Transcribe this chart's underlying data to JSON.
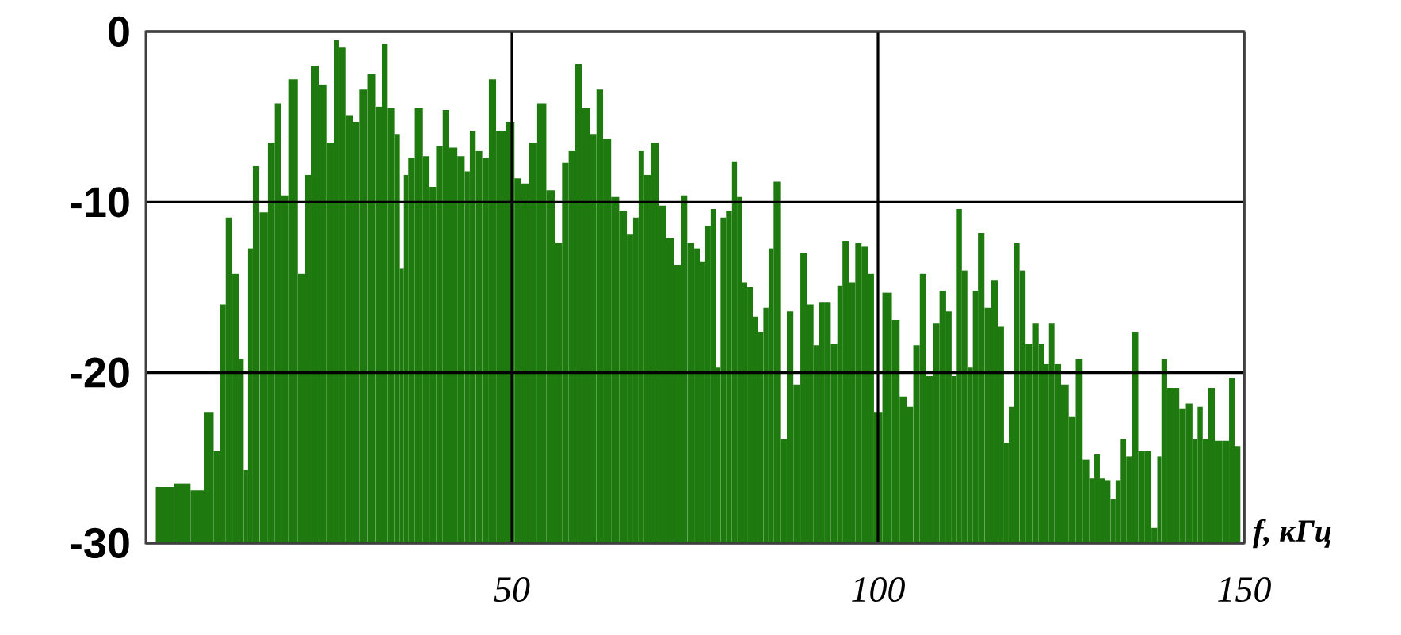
{
  "chart_data": {
    "type": "bar",
    "xlabel": "f, кГц",
    "color": "#1e7a0e",
    "xlim": [
      0,
      150
    ],
    "ylim": [
      -30,
      0
    ],
    "xticks": [
      50,
      100,
      150
    ],
    "yticks": [
      0,
      -10,
      -20,
      -30
    ],
    "grid": true,
    "x": [
      2.6,
      5.1,
      7.1,
      8.7,
      9.8,
      10.5,
      11.3,
      12.3,
      13.1,
      13.6,
      14.3,
      14.9,
      16.1,
      17.2,
      18.0,
      19.0,
      20.1,
      21.4,
      22.1,
      23.0,
      24.2,
      25.3,
      26.0,
      26.8,
      27.9,
      28.6,
      29.7,
      30.8,
      31.9,
      32.6,
      33.5,
      34.4,
      35.0,
      35.5,
      36.2,
      37.3,
      38.4,
      39.1,
      40.2,
      40.9,
      42.0,
      43.1,
      44.0,
      44.5,
      45.6,
      46.3,
      47.4,
      48.3,
      50.0,
      50.7,
      51.8,
      52.9,
      54.0,
      55.4,
      56.5,
      57.2,
      58.3,
      59.0,
      60.1,
      61.2,
      61.9,
      63.0,
      64.1,
      65.2,
      66.2,
      66.9,
      67.7,
      68.4,
      69.5,
      70.6,
      71.6,
      72.7,
      73.4,
      74.5,
      75.3,
      76.0,
      76.8,
      77.5,
      78.2,
      78.8,
      79.7,
      80.4,
      81.1,
      81.8,
      82.5,
      83.3,
      84.0,
      84.7,
      85.4,
      86.1,
      87.2,
      87.9,
      89.0,
      89.8,
      90.8,
      91.6,
      92.3,
      93.0,
      94.1,
      94.8,
      95.5,
      96.6,
      97.2,
      98.3,
      99.1,
      99.8,
      101.4,
      102.4,
      103.5,
      104.3,
      105.3,
      106.1,
      107.1,
      107.9,
      108.9,
      109.7,
      110.4,
      111.1,
      111.8,
      112.6,
      113.3,
      114.0,
      115.1,
      115.8,
      116.9,
      117.5,
      118.2,
      118.9,
      119.8,
      120.5,
      121.6,
      122.3,
      123.0,
      123.7,
      124.5,
      125.5,
      126.6,
      127.4,
      128.5,
      129.2,
      129.9,
      130.7,
      131.4,
      132.1,
      132.8,
      133.5,
      134.3,
      135.0,
      136.1,
      136.8,
      137.9,
      138.4,
      139.0,
      140.0,
      140.8,
      141.5,
      142.6,
      143.3,
      144.0,
      144.7,
      145.5,
      146.5,
      147.6,
      148.3,
      149.1
    ],
    "values": [
      3.3,
      3.5,
      3.1,
      7.7,
      5.4,
      14,
      19.1,
      15.8,
      10.8,
      4.3,
      17.3,
      22.1,
      19.4,
      23.5,
      25.8,
      20.4,
      27.2,
      15.8,
      21.6,
      28.0,
      26.9,
      23.5,
      29.5,
      29.1,
      25.1,
      24.7,
      26.6,
      27.5,
      25.6,
      29.3,
      25.5,
      24,
      16.1,
      21.6,
      22.6,
      25.5,
      22.7,
      20.9,
      23.3,
      25.4,
      23.2,
      22.7,
      21.8,
      24.2,
      23.0,
      22.6,
      27.2,
      24.2,
      24.7,
      21.4,
      21.1,
      23.5,
      25.8,
      20.7,
      17.6,
      22.3,
      23.0,
      28.1,
      25.5,
      24,
      26.6,
      23.7,
      20.3,
      19.5,
      18.1,
      19.1,
      23.0,
      21.6,
      23.5,
      19.8,
      17.9,
      16.3,
      20.4,
      17.6,
      17.3,
      16.5,
      18.6,
      19.6,
      10.3,
      19.1,
      19.5,
      22.4,
      20.3,
      15.3,
      15,
      13.3,
      12.4,
      13.8,
      17.3,
      21.2,
      6.1,
      13.6,
      9.3,
      17,
      14,
      11.6,
      14.1,
      14.1,
      11.7,
      15.1,
      17.7,
      15.3,
      17.6,
      17.4,
      15.8,
      7.7,
      14.7,
      13.1,
      8.6,
      8,
      11.6,
      15.8,
      9.8,
      12.9,
      14.8,
      13.6,
      9.8,
      19.6,
      16.0,
      10.3,
      14.8,
      18.2,
      13.8,
      15.4,
      12.7,
      5.9,
      8.0,
      17.6,
      16.0,
      11.7,
      12.9,
      11.7,
      10.5,
      12.9,
      10.5,
      9.3,
      7.4,
      10.8,
      4.9,
      3.8,
      5.2,
      3.8,
      3.7,
      2.6,
      3.7,
      6.1,
      5.1,
      12.4,
      5.4,
      5.4,
      0.9,
      5.1,
      10.8,
      9.1,
      9.1,
      7.9,
      8.2,
      6.1,
      8,
      6.1,
      9.1,
      6.0,
      6.0,
      9.7,
      5.7
    ],
    "base": [
      -30,
      -30,
      -30,
      -30,
      -30,
      -30,
      -30,
      -30,
      -30,
      -30,
      -30,
      -30,
      -30,
      -30,
      -30,
      -30,
      -30,
      -30,
      -30,
      -30,
      -30,
      -30,
      -30,
      -30,
      -30,
      -30,
      -30,
      -30,
      -30,
      -30,
      -30,
      -30,
      -30,
      -30,
      -30,
      -30,
      -30,
      -30,
      -30,
      -30,
      -30,
      -30,
      -30,
      -30,
      -30,
      -30,
      -30,
      -30,
      -30,
      -30,
      -30,
      -30,
      -30,
      -30,
      -30,
      -30,
      -30,
      -30,
      -30,
      -30,
      -30,
      -30,
      -30,
      -30,
      -30,
      -30,
      -30,
      -30,
      -30,
      -30,
      -30,
      -30,
      -30,
      -30,
      -30,
      -30,
      -30,
      -30,
      -30,
      -30,
      -30,
      -30,
      -30,
      -30,
      -30,
      -30,
      -30,
      -30,
      -30,
      -30,
      -30,
      -30,
      -30,
      -30,
      -30,
      -30,
      -30,
      -30,
      -30,
      -30,
      -30,
      -30,
      -30,
      -30,
      -30,
      -30,
      -30,
      -30,
      -30,
      -30,
      -30,
      -30,
      -30,
      -30,
      -30,
      -30,
      -30,
      -30,
      -30,
      -30,
      -30,
      -30,
      -30,
      -30,
      -30,
      -30,
      -30,
      -30,
      -30,
      -30,
      -30,
      -30,
      -30,
      -30,
      -30,
      -30,
      -30,
      -30,
      -30,
      -30,
      -30,
      -30,
      -30,
      -30,
      -30,
      -30,
      -30,
      -30,
      -30,
      -30,
      -30,
      -30,
      -30,
      -30,
      -30,
      -30,
      -30,
      -30,
      -30,
      -30,
      -30,
      -30,
      -30,
      -30,
      -30
    ]
  }
}
